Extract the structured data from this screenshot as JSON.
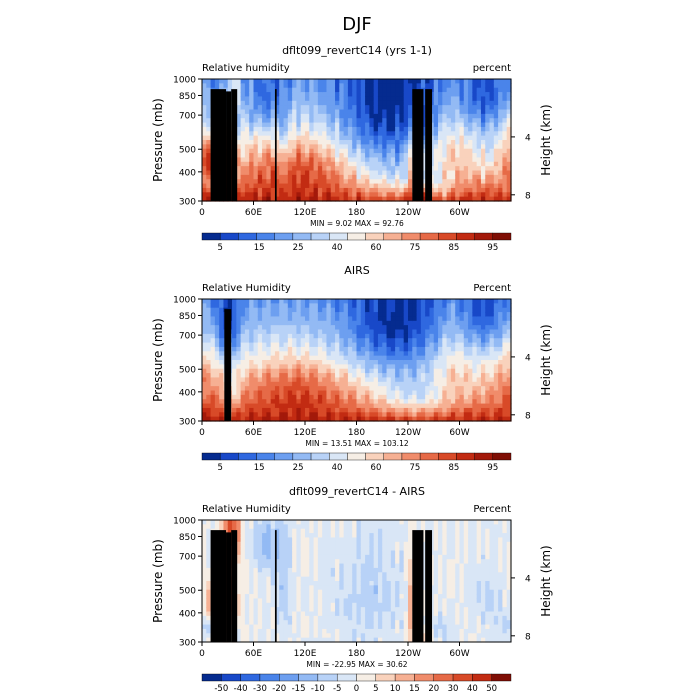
{
  "page_title": "DJF",
  "chart_data": [
    {
      "type": "heatmap",
      "title": "dflt099_revertC14 (yrs 1-1)",
      "left_label": "Relative humidity",
      "right_label": "percent",
      "ylabel": "Pressure (mb)",
      "ylabel_right": "Height (km)",
      "y_ticks": [
        300,
        400,
        500,
        700,
        850,
        1000
      ],
      "y_ticks_right": [
        8,
        4
      ],
      "x_ticks": [
        "0",
        "60E",
        "120E",
        "180",
        "120W",
        "60W"
      ],
      "x_tick_lon": [
        0,
        60,
        120,
        180,
        240,
        300
      ],
      "xlim": [
        0,
        360
      ],
      "ylim": [
        1000,
        300
      ],
      "stats": "MIN =    9.02   MAX =   92.76",
      "colorbar_labels": [
        "5",
        "15",
        "25",
        "40",
        "60",
        "75",
        "85",
        "95"
      ],
      "colorbar_colors": [
        "#052b8f",
        "#1848c8",
        "#2f68e0",
        "#4a84ea",
        "#6d9ff0",
        "#93baf4",
        "#b8d2f7",
        "#d9e6f6",
        "#f6eee5",
        "#f9d2bc",
        "#f6b093",
        "#f08c6b",
        "#e66a47",
        "#d84a28",
        "#c22b12",
        "#a3190a",
        "#7f0e05"
      ],
      "vmin": 0,
      "vmax": 100,
      "field": "model",
      "terrain": [
        [
          10,
          28,
          1000
        ],
        [
          28,
          34,
          885
        ],
        [
          34,
          41,
          1000
        ],
        [
          85,
          87,
          1000
        ],
        [
          245,
          258,
          1000
        ],
        [
          260,
          268,
          1000
        ]
      ]
    },
    {
      "type": "heatmap",
      "title": "AIRS",
      "left_label": "Relative Humidity",
      "right_label": "Percent",
      "ylabel": "Pressure (mb)",
      "ylabel_right": "Height (km)",
      "y_ticks": [
        300,
        400,
        500,
        700,
        850,
        1000
      ],
      "y_ticks_right": [
        8,
        4
      ],
      "x_ticks": [
        "0",
        "60E",
        "120E",
        "180",
        "120W",
        "60W"
      ],
      "x_tick_lon": [
        0,
        60,
        120,
        180,
        240,
        300
      ],
      "xlim": [
        0,
        360
      ],
      "ylim": [
        1000,
        300
      ],
      "stats": "MIN =   13.51   MAX = 103.12",
      "colorbar_labels": [
        "5",
        "15",
        "25",
        "40",
        "60",
        "75",
        "85",
        "95"
      ],
      "colorbar_colors": [
        "#052b8f",
        "#1848c8",
        "#2f68e0",
        "#4a84ea",
        "#6d9ff0",
        "#93baf4",
        "#b8d2f7",
        "#d9e6f6",
        "#f6eee5",
        "#f9d2bc",
        "#f6b093",
        "#f08c6b",
        "#e66a47",
        "#d84a28",
        "#c22b12",
        "#a3190a",
        "#7f0e05"
      ],
      "vmin": 0,
      "vmax": 100,
      "field": "obs",
      "terrain": [
        [
          26,
          34,
          1000
        ]
      ]
    },
    {
      "type": "heatmap",
      "title": "dflt099_revertC14 - AIRS",
      "left_label": "Relative Humidity",
      "right_label": "Percent",
      "ylabel": "Pressure (mb)",
      "ylabel_right": "Height (km)",
      "y_ticks": [
        300,
        400,
        500,
        700,
        850,
        1000
      ],
      "y_ticks_right": [
        8,
        4
      ],
      "x_ticks": [
        "0",
        "60E",
        "120E",
        "180",
        "120W",
        "60W"
      ],
      "x_tick_lon": [
        0,
        60,
        120,
        180,
        240,
        300
      ],
      "xlim": [
        0,
        360
      ],
      "ylim": [
        1000,
        300
      ],
      "stats": "MIN =  -22.95   MAX =   30.62",
      "colorbar_labels": [
        "-50",
        "-40",
        "-30",
        "-20",
        "-15",
        "-10",
        "-5",
        "0",
        "5",
        "10",
        "15",
        "20",
        "30",
        "40",
        "50"
      ],
      "colorbar_colors": [
        "#052b8f",
        "#1848c8",
        "#2f68e0",
        "#4a84ea",
        "#6d9ff0",
        "#93baf4",
        "#b8d2f7",
        "#d9e6f6",
        "#f6eee5",
        "#f9d2bc",
        "#f6b093",
        "#f08c6b",
        "#e66a47",
        "#d84a28",
        "#c22b12",
        "#7f0e05"
      ],
      "vmin": -55,
      "vmax": 55,
      "field": "diff",
      "terrain": [
        [
          10,
          28,
          1000
        ],
        [
          28,
          34,
          885
        ],
        [
          34,
          41,
          1000
        ],
        [
          85,
          87,
          1000
        ],
        [
          245,
          258,
          1000
        ],
        [
          260,
          268,
          1000
        ]
      ]
    }
  ]
}
